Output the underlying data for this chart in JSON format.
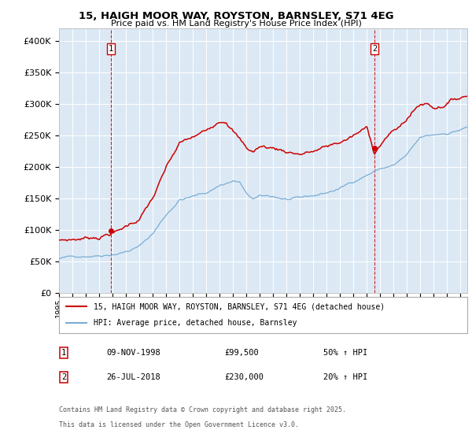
{
  "title_line1": "15, HAIGH MOOR WAY, ROYSTON, BARNSLEY, S71 4EG",
  "title_line2": "Price paid vs. HM Land Registry's House Price Index (HPI)",
  "ylim": [
    0,
    420000
  ],
  "yticks": [
    0,
    50000,
    100000,
    150000,
    200000,
    250000,
    300000,
    350000,
    400000
  ],
  "ytick_labels": [
    "£0",
    "£50K",
    "£100K",
    "£150K",
    "£200K",
    "£250K",
    "£300K",
    "£350K",
    "£400K"
  ],
  "hpi_color": "#7aadd4",
  "price_color": "#cc0000",
  "dashed_color": "#cc0000",
  "plot_bg": "#dce9f5",
  "grid_color": "#ffffff",
  "sale1_date": "09-NOV-1998",
  "sale1_price": 99500,
  "sale2_date": "26-JUL-2018",
  "sale2_price": 230000,
  "sale1_pct": "50% ↑ HPI",
  "sale2_pct": "20% ↑ HPI",
  "legend_line1": "15, HAIGH MOOR WAY, ROYSTON, BARNSLEY, S71 4EG (detached house)",
  "legend_line2": "HPI: Average price, detached house, Barnsley",
  "footnote1": "Contains HM Land Registry data © Crown copyright and database right 2025.",
  "footnote2": "This data is licensed under the Open Government Licence v3.0.",
  "sale1_year": 1998.86,
  "sale2_year": 2018.56,
  "hpi_anchors_t": [
    1995.0,
    1996.0,
    1997.0,
    1998.0,
    1999.0,
    2000.0,
    2001.0,
    2002.0,
    2003.0,
    2004.0,
    2005.0,
    2006.0,
    2007.0,
    2008.0,
    2008.5,
    2009.0,
    2009.5,
    2010.0,
    2011.0,
    2012.0,
    2013.0,
    2014.0,
    2015.0,
    2016.0,
    2017.0,
    2018.0,
    2019.0,
    2020.0,
    2021.0,
    2022.0,
    2023.0,
    2024.0,
    2025.5
  ],
  "hpi_anchors_v": [
    55000,
    57000,
    60000,
    63000,
    67000,
    72000,
    80000,
    100000,
    130000,
    155000,
    160000,
    165000,
    178000,
    185000,
    183000,
    163000,
    155000,
    158000,
    157000,
    153000,
    152000,
    155000,
    160000,
    167000,
    178000,
    190000,
    200000,
    205000,
    220000,
    245000,
    248000,
    252000,
    262000
  ],
  "price_anchors_t": [
    1995.0,
    1996.0,
    1997.0,
    1998.0,
    1998.86,
    1999.5,
    2000.0,
    2001.0,
    2002.0,
    2003.0,
    2004.0,
    2005.0,
    2006.0,
    2007.0,
    2007.5,
    2008.0,
    2008.5,
    2009.0,
    2009.5,
    2010.0,
    2011.0,
    2012.0,
    2013.0,
    2014.0,
    2015.0,
    2016.0,
    2017.0,
    2018.0,
    2018.56,
    2019.0,
    2019.5,
    2020.0,
    2020.5,
    2021.0,
    2021.5,
    2022.0,
    2022.5,
    2023.0,
    2023.5,
    2024.0,
    2024.5,
    2025.5
  ],
  "price_anchors_v": [
    83000,
    85000,
    88000,
    92000,
    99500,
    103000,
    110000,
    123000,
    155000,
    200000,
    237000,
    245000,
    254000,
    275000,
    278000,
    265000,
    250000,
    235000,
    230000,
    238000,
    236000,
    232000,
    230000,
    234000,
    240000,
    247000,
    257000,
    268000,
    230000,
    245000,
    258000,
    265000,
    272000,
    285000,
    298000,
    308000,
    310000,
    305000,
    308000,
    315000,
    320000,
    328000
  ]
}
